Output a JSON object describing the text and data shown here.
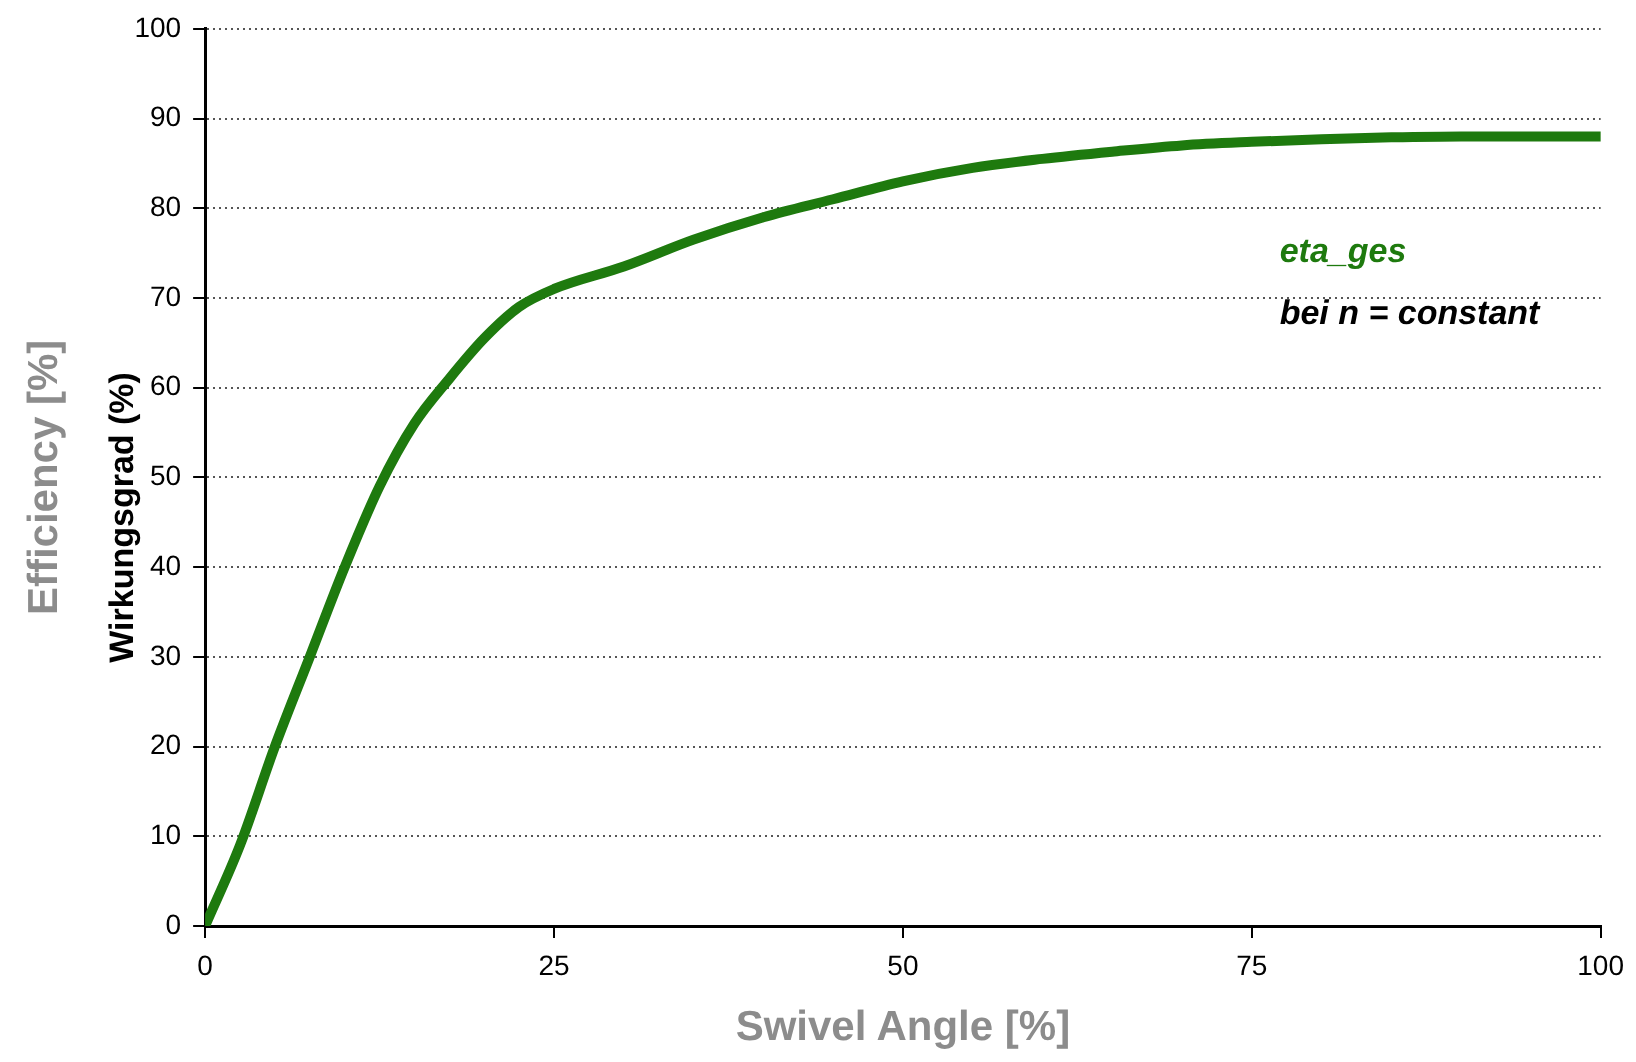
{
  "chart_data": {
    "type": "line",
    "xlabel": "Swivel Angle [%]",
    "ylabel": "Efficiency [%]",
    "annotations": [
      "Wirkungsgrad (%)",
      "bei n = constant"
    ],
    "xlim": [
      0,
      100
    ],
    "xticks": [
      0,
      25,
      50,
      75,
      100
    ],
    "ylim": [
      0,
      100
    ],
    "yticks": [
      0,
      10,
      20,
      30,
      40,
      50,
      60,
      70,
      80,
      90,
      100
    ],
    "grid": "y",
    "legend": false,
    "marker": "none",
    "line_style": "solid",
    "series": [
      {
        "name": "eta_ges",
        "color": "#1e7a0e",
        "x": [
          0,
          2.5,
          5,
          7.5,
          10,
          12.5,
          15,
          17.5,
          20,
          22.5,
          25,
          30,
          35,
          40,
          45,
          50,
          55,
          60,
          65,
          70,
          75,
          80,
          85,
          90,
          95,
          100
        ],
        "values": [
          0,
          9,
          20,
          30,
          40,
          49,
          56,
          61,
          65.5,
          69,
          71,
          73.5,
          76.5,
          79,
          81,
          83,
          84.5,
          85.5,
          86.3,
          87,
          87.4,
          87.7,
          87.9,
          88,
          88,
          88
        ]
      }
    ]
  }
}
